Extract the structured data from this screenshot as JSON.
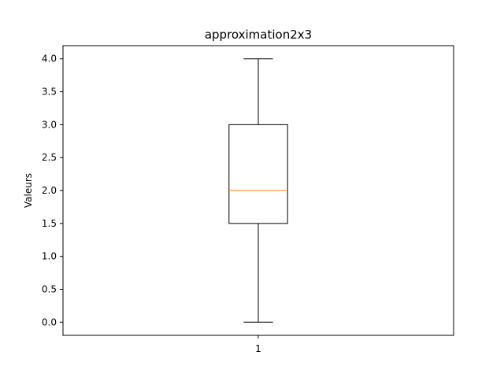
{
  "chart_data": {
    "type": "box",
    "title": "approximation2x3",
    "xlabel": "",
    "ylabel": "Valeurs",
    "ylim": [
      -0.2,
      4.2
    ],
    "yticks": [
      0.0,
      0.5,
      1.0,
      1.5,
      2.0,
      2.5,
      3.0,
      3.5,
      4.0
    ],
    "ytick_labels": [
      "0.0",
      "0.5",
      "1.0",
      "1.5",
      "2.0",
      "2.5",
      "3.0",
      "3.5",
      "4.0"
    ],
    "categories": [
      "1"
    ],
    "boxes": [
      {
        "label": "1",
        "whisker_low": 0.0,
        "q1": 1.5,
        "median": 2.0,
        "q3": 3.0,
        "whisker_high": 4.0
      }
    ],
    "grid": false,
    "colors": {
      "box": "#000000",
      "median": "#ff7f0e",
      "axes": "#000000"
    }
  }
}
